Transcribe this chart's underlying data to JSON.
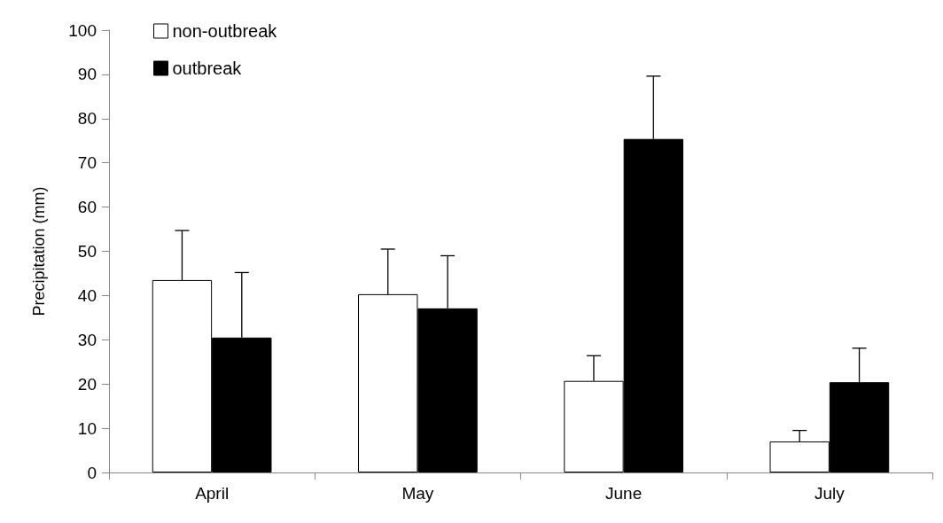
{
  "chart_data": {
    "type": "bar",
    "ylabel": "Precipitation (mm)",
    "categories": [
      "April",
      "May",
      "June",
      "July"
    ],
    "series": [
      {
        "name": "non-outbreak",
        "color": "#ffffff",
        "values": [
          43.5,
          40.3,
          20.7,
          7.0
        ],
        "errors": [
          [
            43.5,
            54.7
          ],
          [
            40.3,
            50.5
          ],
          [
            20.7,
            26.4
          ],
          [
            7.0,
            9.5
          ]
        ]
      },
      {
        "name": "outbreak",
        "color": "#000000",
        "values": [
          30.5,
          37.1,
          75.4,
          20.4
        ],
        "errors": [
          [
            30.5,
            45.2
          ],
          [
            37.1,
            49.0
          ],
          [
            75.4,
            89.6
          ],
          [
            20.4,
            28.1
          ]
        ]
      }
    ],
    "ylim": [
      0,
      100
    ],
    "yticks": [
      0,
      10,
      20,
      30,
      40,
      50,
      60,
      70,
      80,
      90,
      100
    ],
    "grid": false,
    "legend": "top left"
  }
}
